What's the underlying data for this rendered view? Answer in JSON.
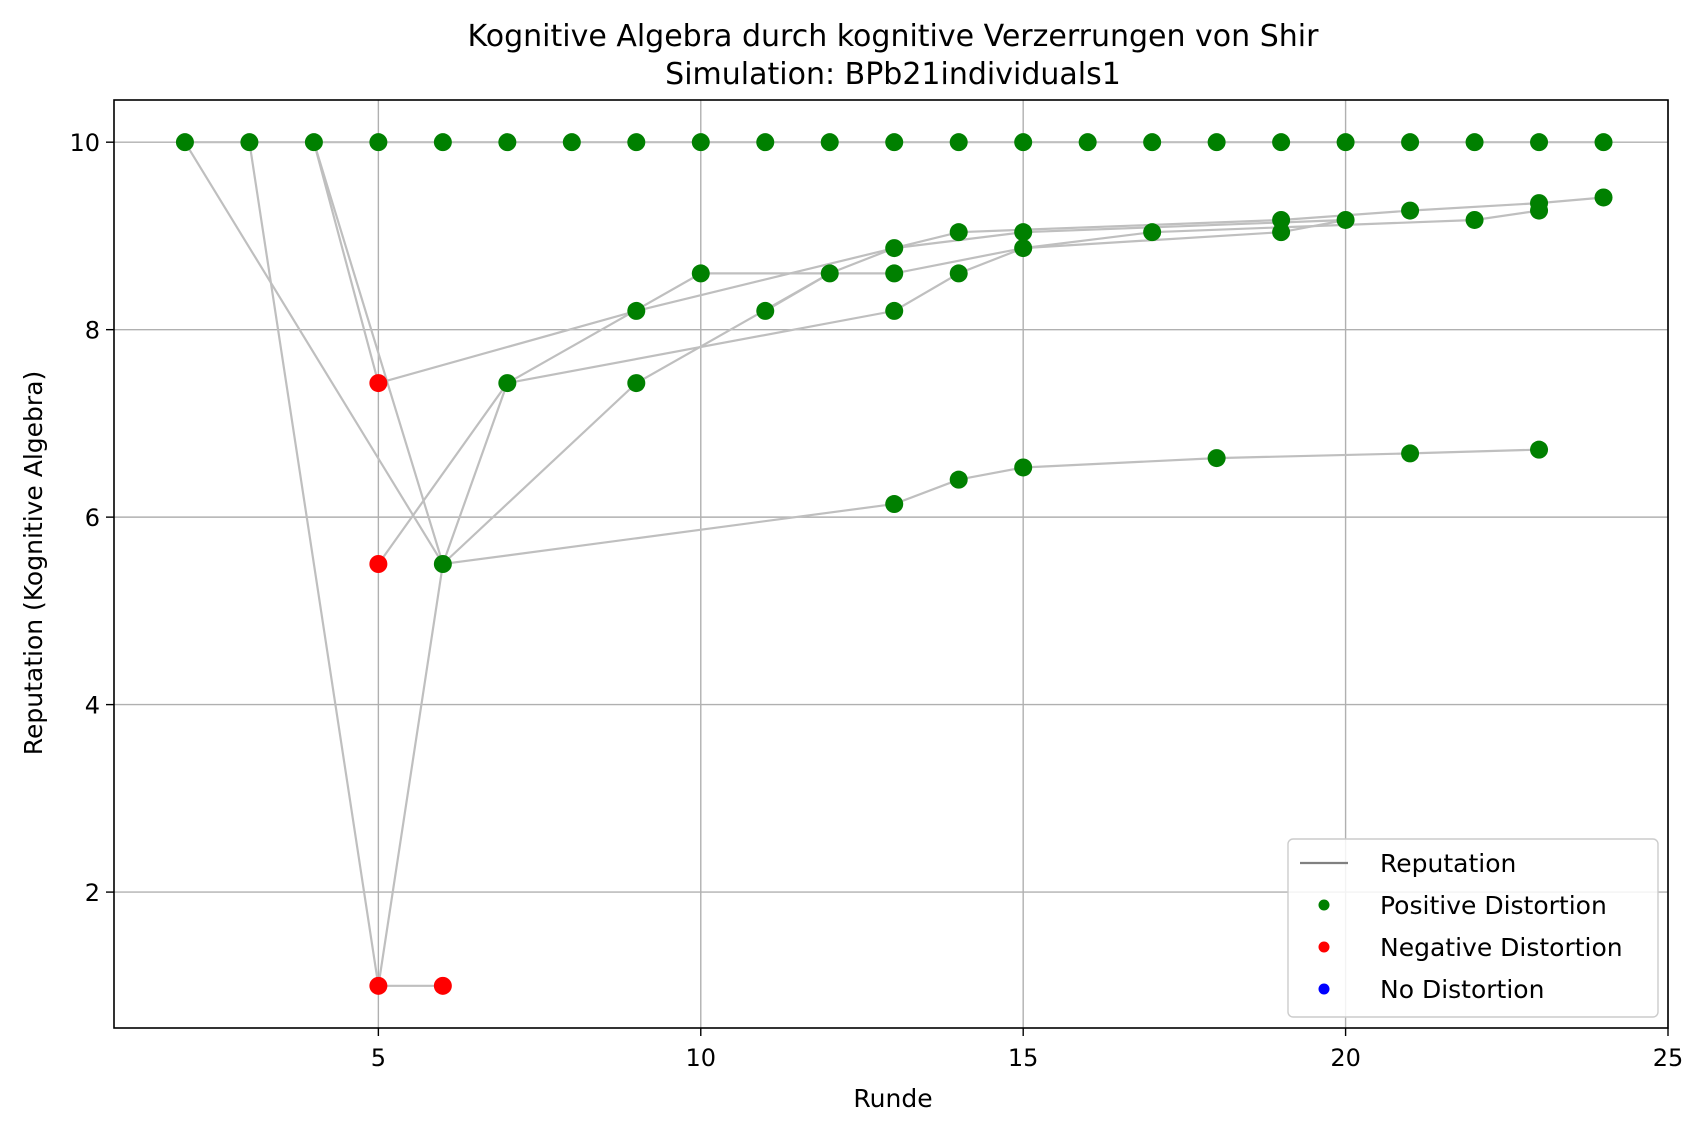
{
  "chart_data": {
    "type": "scatter",
    "title": "Kognitive Algebra durch kognitive Verzerrungen von Shir",
    "subtitle": "Simulation: BPb21individuals1",
    "xlabel": "Runde",
    "ylabel": "Reputation (Kognitive Algebra)",
    "xlim": [
      0.9,
      25.0
    ],
    "ylim": [
      0.55,
      10.45
    ],
    "x_ticks": [
      5,
      10,
      15,
      20,
      25
    ],
    "y_ticks": [
      2,
      4,
      6,
      8,
      10
    ],
    "grid": true,
    "legend_position": "lower right",
    "colors": {
      "reputation_line": "#bfbfbf",
      "legend_line": "#808080",
      "positive": "#008000",
      "negative": "#ff0000",
      "none": "#0000ff",
      "grid": "#b0b0b0"
    },
    "legend": [
      {
        "label": "Reputation",
        "kind": "line",
        "color": "#808080"
      },
      {
        "label": "Positive Distortion",
        "kind": "marker",
        "color": "#008000"
      },
      {
        "label": "Negative Distortion",
        "kind": "marker",
        "color": "#ff0000"
      },
      {
        "label": "No Distortion",
        "kind": "marker",
        "color": "#0000ff"
      }
    ],
    "series": [
      {
        "label": "Reputation",
        "points": [
          [
            2,
            10
          ],
          [
            3,
            10
          ],
          [
            4,
            10
          ],
          [
            5,
            10
          ],
          [
            6,
            10
          ],
          [
            7,
            10
          ],
          [
            8,
            10
          ],
          [
            9,
            10
          ],
          [
            10,
            10
          ],
          [
            11,
            10
          ],
          [
            12,
            10
          ],
          [
            13,
            10
          ],
          [
            14,
            10
          ],
          [
            15,
            10
          ],
          [
            16,
            10
          ],
          [
            17,
            10
          ],
          [
            18,
            10
          ],
          [
            19,
            10
          ],
          [
            20,
            10
          ],
          [
            21,
            10
          ],
          [
            22,
            10
          ],
          [
            23,
            10
          ],
          [
            24,
            10
          ]
        ]
      },
      {
        "label": "Reputation",
        "points": [
          [
            2,
            10
          ],
          [
            6,
            5.5
          ],
          [
            13,
            6.14
          ],
          [
            14,
            6.4
          ],
          [
            15,
            6.53
          ],
          [
            18,
            6.63
          ],
          [
            21,
            6.68
          ],
          [
            23,
            6.72
          ]
        ]
      },
      {
        "label": "Reputation",
        "points": [
          [
            3,
            10
          ],
          [
            5,
            1.0
          ],
          [
            6,
            1.0
          ]
        ]
      },
      {
        "label": "Reputation",
        "points": [
          [
            4,
            10
          ],
          [
            5,
            7.43
          ],
          [
            9,
            8.2
          ],
          [
            13,
            8.87
          ],
          [
            14,
            9.04
          ],
          [
            19,
            9.17
          ],
          [
            21,
            9.27
          ],
          [
            23,
            9.35
          ],
          [
            24,
            9.41
          ]
        ]
      },
      {
        "label": "Reputation",
        "points": [
          [
            4,
            10
          ],
          [
            6,
            5.5
          ],
          [
            7,
            7.43
          ],
          [
            13,
            8.2
          ],
          [
            14,
            8.6
          ],
          [
            15,
            8.87
          ],
          [
            19,
            9.04
          ],
          [
            20,
            9.17
          ]
        ]
      },
      {
        "label": "Reputation",
        "points": [
          [
            5,
            1.0
          ],
          [
            6,
            5.5
          ],
          [
            9,
            7.43
          ],
          [
            12,
            8.6
          ],
          [
            13,
            8.87
          ],
          [
            15,
            9.04
          ],
          [
            20,
            9.17
          ]
        ]
      },
      {
        "label": "Reputation",
        "points": [
          [
            5,
            5.5
          ],
          [
            7,
            7.43
          ],
          [
            10,
            8.6
          ],
          [
            13,
            8.6
          ],
          [
            15,
            8.87
          ],
          [
            17,
            9.04
          ],
          [
            22,
            9.17
          ],
          [
            23,
            9.27
          ]
        ]
      },
      {
        "label": "Reputation",
        "points": [
          [
            11,
            8.2
          ],
          [
            12,
            8.6
          ]
        ]
      }
    ],
    "points": [
      {
        "x": 2,
        "y": 10,
        "distortion": "positive"
      },
      {
        "x": 3,
        "y": 10,
        "distortion": "positive"
      },
      {
        "x": 4,
        "y": 10,
        "distortion": "positive"
      },
      {
        "x": 5,
        "y": 10,
        "distortion": "positive"
      },
      {
        "x": 6,
        "y": 10,
        "distortion": "positive"
      },
      {
        "x": 7,
        "y": 10,
        "distortion": "positive"
      },
      {
        "x": 8,
        "y": 10,
        "distortion": "positive"
      },
      {
        "x": 9,
        "y": 10,
        "distortion": "positive"
      },
      {
        "x": 10,
        "y": 10,
        "distortion": "positive"
      },
      {
        "x": 11,
        "y": 10,
        "distortion": "positive"
      },
      {
        "x": 12,
        "y": 10,
        "distortion": "positive"
      },
      {
        "x": 13,
        "y": 10,
        "distortion": "positive"
      },
      {
        "x": 14,
        "y": 10,
        "distortion": "positive"
      },
      {
        "x": 15,
        "y": 10,
        "distortion": "positive"
      },
      {
        "x": 16,
        "y": 10,
        "distortion": "positive"
      },
      {
        "x": 17,
        "y": 10,
        "distortion": "positive"
      },
      {
        "x": 18,
        "y": 10,
        "distortion": "positive"
      },
      {
        "x": 19,
        "y": 10,
        "distortion": "positive"
      },
      {
        "x": 20,
        "y": 10,
        "distortion": "positive"
      },
      {
        "x": 21,
        "y": 10,
        "distortion": "positive"
      },
      {
        "x": 22,
        "y": 10,
        "distortion": "positive"
      },
      {
        "x": 23,
        "y": 10,
        "distortion": "positive"
      },
      {
        "x": 24,
        "y": 10,
        "distortion": "positive"
      },
      {
        "x": 5,
        "y": 7.43,
        "distortion": "negative"
      },
      {
        "x": 5,
        "y": 5.5,
        "distortion": "negative"
      },
      {
        "x": 5,
        "y": 1.0,
        "distortion": "negative"
      },
      {
        "x": 6,
        "y": 1.0,
        "distortion": "negative"
      },
      {
        "x": 6,
        "y": 5.5,
        "distortion": "positive"
      },
      {
        "x": 7,
        "y": 7.43,
        "distortion": "positive"
      },
      {
        "x": 9,
        "y": 8.2,
        "distortion": "positive"
      },
      {
        "x": 9,
        "y": 7.43,
        "distortion": "positive"
      },
      {
        "x": 10,
        "y": 8.6,
        "distortion": "positive"
      },
      {
        "x": 11,
        "y": 8.2,
        "distortion": "positive"
      },
      {
        "x": 12,
        "y": 8.6,
        "distortion": "positive"
      },
      {
        "x": 13,
        "y": 8.87,
        "distortion": "positive"
      },
      {
        "x": 13,
        "y": 8.6,
        "distortion": "positive"
      },
      {
        "x": 13,
        "y": 8.2,
        "distortion": "positive"
      },
      {
        "x": 13,
        "y": 6.14,
        "distortion": "positive"
      },
      {
        "x": 14,
        "y": 9.04,
        "distortion": "positive"
      },
      {
        "x": 14,
        "y": 8.6,
        "distortion": "positive"
      },
      {
        "x": 14,
        "y": 6.4,
        "distortion": "positive"
      },
      {
        "x": 15,
        "y": 9.04,
        "distortion": "positive"
      },
      {
        "x": 15,
        "y": 8.87,
        "distortion": "positive"
      },
      {
        "x": 15,
        "y": 6.53,
        "distortion": "positive"
      },
      {
        "x": 17,
        "y": 9.04,
        "distortion": "positive"
      },
      {
        "x": 18,
        "y": 6.63,
        "distortion": "positive"
      },
      {
        "x": 19,
        "y": 9.17,
        "distortion": "positive"
      },
      {
        "x": 19,
        "y": 9.04,
        "distortion": "positive"
      },
      {
        "x": 20,
        "y": 9.17,
        "distortion": "positive"
      },
      {
        "x": 21,
        "y": 9.27,
        "distortion": "positive"
      },
      {
        "x": 21,
        "y": 6.68,
        "distortion": "positive"
      },
      {
        "x": 22,
        "y": 9.17,
        "distortion": "positive"
      },
      {
        "x": 23,
        "y": 9.35,
        "distortion": "positive"
      },
      {
        "x": 23,
        "y": 9.27,
        "distortion": "positive"
      },
      {
        "x": 23,
        "y": 6.72,
        "distortion": "positive"
      },
      {
        "x": 24,
        "y": 9.41,
        "distortion": "positive"
      }
    ]
  }
}
